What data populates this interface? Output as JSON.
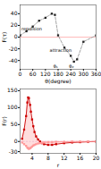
{
  "chart_data": [
    {
      "type": "line",
      "x": [
        0,
        30,
        60,
        90,
        120,
        150,
        165,
        180,
        210,
        240,
        255,
        270,
        300,
        360
      ],
      "values": [
        3,
        10,
        18,
        28,
        33,
        40,
        38,
        3,
        -18,
        -32,
        -42,
        -38,
        -8,
        3
      ],
      "color": "#999999",
      "marker": "square",
      "line_style": "dashed",
      "xlabel": "θ(degree)",
      "ylabel": "F(τ)",
      "xlim": [
        0,
        360
      ],
      "ylim": [
        -55,
        55
      ],
      "xticks": [
        0,
        60,
        120,
        180,
        240,
        300,
        360
      ],
      "yticks": [
        -40,
        -20,
        0,
        20,
        40
      ],
      "annotations": [
        {
          "text": "repulsion",
          "x": 55,
          "y": 14
        },
        {
          "text": "attraction",
          "x": 192,
          "y": -22
        },
        {
          "text": "θ₁",
          "x": 168,
          "y": -50
        },
        {
          "text": "θ₂",
          "x": 243,
          "y": -50
        }
      ]
    },
    {
      "type": "line",
      "x": [
        1.5,
        2.0,
        2.5,
        2.8,
        3.0,
        3.2,
        3.5,
        3.7,
        4.0,
        4.3,
        4.6,
        5.0,
        5.5,
        6.0,
        6.5,
        7.0,
        8.0,
        9.0,
        10.0,
        12.0,
        14.0,
        16.0,
        18.0,
        20.0
      ],
      "series": [
        {
          "color": "#CC0000",
          "marker": "square",
          "values": [
            8,
            35,
            75,
            115,
            130,
            128,
            108,
            88,
            65,
            45,
            28,
            15,
            6,
            0,
            -5,
            -8,
            -10,
            -10,
            -8,
            -5,
            -3,
            -2,
            -1,
            0
          ]
        },
        {
          "color": "#FF9999",
          "marker": "square",
          "values": [
            -3,
            -8,
            -13,
            -18,
            -20,
            -22,
            -20,
            -18,
            -15,
            -12,
            -10,
            -8,
            -6,
            -5,
            -4,
            -3,
            -2,
            -2,
            -1,
            -1,
            0,
            0,
            0,
            0
          ]
        }
      ],
      "xlabel": "r",
      "ylabel": "F(r)",
      "xlim": [
        1,
        20
      ],
      "ylim": [
        -35,
        155
      ],
      "xticks": [
        4,
        8,
        12,
        16,
        20
      ],
      "yticks": [
        -30,
        0,
        50,
        100,
        150
      ]
    }
  ]
}
